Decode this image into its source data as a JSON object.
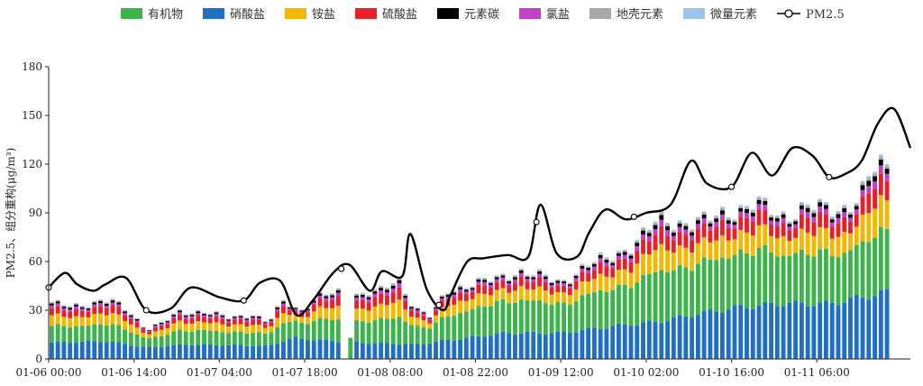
{
  "chart_data": {
    "type": "bar",
    "stacked": true,
    "ylabel": "PM2.5、组分重构(μg/m³)",
    "ylim": [
      0,
      180
    ],
    "yticks": [
      0,
      30,
      60,
      90,
      120,
      150,
      180
    ],
    "xticks": [
      "01-06 00:00",
      "01-06 14:00",
      "01-07 04:00",
      "01-07 18:00",
      "01-08 08:00",
      "01-08 22:00",
      "01-09 12:00",
      "01-10 02:00",
      "01-10 16:00",
      "01-11 06:00"
    ],
    "x_start": "01-06 00:00",
    "x_step_hours": 1,
    "n_bars": 138,
    "legend_position": "top",
    "series": [
      {
        "name": "有机物",
        "color": "#3cb44b"
      },
      {
        "name": "硝酸盐",
        "color": "#1f6fc5"
      },
      {
        "name": "铵盐",
        "color": "#f5b800"
      },
      {
        "name": "硫酸盐",
        "color": "#e8202a"
      },
      {
        "name": "元素碳",
        "color": "#000000"
      },
      {
        "name": "氯盐",
        "color": "#c040c8"
      },
      {
        "name": "地壳元素",
        "color": "#a8a8a8"
      },
      {
        "name": "微量元素",
        "color": "#9cc3e8"
      }
    ],
    "pm25_legend": "PM2.5",
    "pm25_knots": [
      [
        0,
        44
      ],
      [
        4,
        53
      ],
      [
        7,
        46
      ],
      [
        11,
        42
      ],
      [
        14,
        46
      ],
      [
        19,
        50
      ],
      [
        24,
        30
      ],
      [
        30,
        31
      ],
      [
        35,
        44
      ],
      [
        42,
        38
      ],
      [
        48,
        36
      ],
      [
        52,
        47
      ],
      [
        57,
        48
      ],
      [
        61,
        27
      ],
      [
        65,
        36
      ],
      [
        70,
        53
      ],
      [
        74,
        58
      ],
      [
        79,
        42
      ],
      [
        82,
        54
      ],
      [
        87,
        51
      ],
      [
        89,
        77
      ],
      [
        93,
        43
      ],
      [
        97,
        30
      ],
      [
        99,
        40
      ],
      [
        103,
        60
      ],
      [
        107,
        62
      ],
      [
        113,
        64
      ],
      [
        118,
        63
      ],
      [
        121,
        95
      ],
      [
        125,
        65
      ],
      [
        130,
        63
      ],
      [
        133,
        78
      ],
      [
        137,
        92
      ],
      [
        142,
        86
      ],
      [
        147,
        90
      ],
      [
        153,
        95
      ],
      [
        158,
        122
      ],
      [
        162,
        108
      ],
      [
        168,
        106
      ],
      [
        173,
        127
      ],
      [
        178,
        113
      ],
      [
        183,
        130
      ],
      [
        188,
        125
      ],
      [
        192,
        112
      ],
      [
        196,
        114
      ],
      [
        200,
        122
      ],
      [
        204,
        145
      ],
      [
        208,
        154
      ],
      [
        212,
        130
      ]
    ],
    "total_knots": [
      [
        0,
        34
      ],
      [
        10,
        34
      ],
      [
        16,
        36
      ],
      [
        20,
        30
      ],
      [
        24,
        18
      ],
      [
        28,
        22
      ],
      [
        32,
        30
      ],
      [
        38,
        29
      ],
      [
        44,
        26
      ],
      [
        50,
        28
      ],
      [
        54,
        22
      ],
      [
        58,
        37
      ],
      [
        62,
        30
      ],
      [
        66,
        38
      ],
      [
        72,
        42
      ],
      [
        76,
        40
      ],
      [
        82,
        42
      ],
      [
        86,
        50
      ],
      [
        90,
        32
      ],
      [
        94,
        26
      ],
      [
        98,
        42
      ],
      [
        104,
        47
      ],
      [
        110,
        49
      ],
      [
        116,
        55
      ],
      [
        120,
        52
      ],
      [
        126,
        47
      ],
      [
        132,
        58
      ],
      [
        138,
        62
      ],
      [
        144,
        72
      ],
      [
        150,
        85
      ],
      [
        156,
        85
      ],
      [
        162,
        85
      ],
      [
        168,
        92
      ],
      [
        174,
        96
      ],
      [
        180,
        88
      ],
      [
        186,
        94
      ],
      [
        192,
        92
      ],
      [
        196,
        94
      ],
      [
        200,
        102
      ],
      [
        204,
        120
      ],
      [
        208,
        116
      ],
      [
        212,
        112
      ]
    ],
    "nitrate_knots": [
      [
        0,
        10
      ],
      [
        14,
        11
      ],
      [
        24,
        7
      ],
      [
        34,
        9
      ],
      [
        54,
        8
      ],
      [
        60,
        13
      ],
      [
        70,
        11
      ],
      [
        78,
        10
      ],
      [
        90,
        9
      ],
      [
        100,
        12
      ],
      [
        112,
        16
      ],
      [
        126,
        16
      ],
      [
        138,
        20
      ],
      [
        150,
        23
      ],
      [
        160,
        28
      ],
      [
        170,
        32
      ],
      [
        180,
        34
      ],
      [
        192,
        34
      ],
      [
        200,
        38
      ],
      [
        212,
        44
      ]
    ],
    "organic_frac": [
      [
        0,
        0.29
      ],
      [
        40,
        0.3
      ],
      [
        80,
        0.33
      ],
      [
        110,
        0.38
      ],
      [
        140,
        0.36
      ],
      [
        170,
        0.36
      ],
      [
        212,
        0.3
      ]
    ]
  }
}
